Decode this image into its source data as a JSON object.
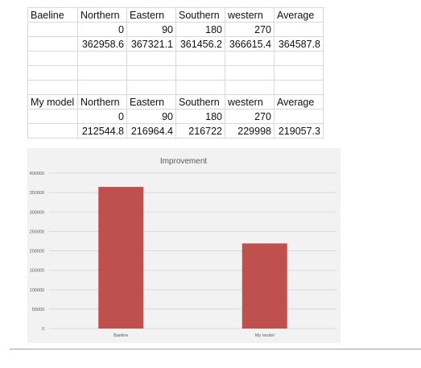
{
  "tables": [
    {
      "header": [
        "Baeline",
        "Northern",
        "Eastern",
        "Southern",
        "western",
        "Average"
      ],
      "rows": [
        [
          "",
          "0",
          "90",
          "180",
          "270",
          ""
        ],
        [
          "",
          "362958.6",
          "367321.1",
          "361456.2",
          "366615.4",
          "364587.8"
        ],
        [
          "",
          "",
          "",
          "",
          "",
          ""
        ],
        [
          "",
          "",
          "",
          "",
          "",
          ""
        ],
        [
          "",
          "",
          "",
          "",
          "",
          ""
        ]
      ]
    },
    {
      "header": [
        "My model",
        "Northern",
        "Eastern",
        "Southern",
        "western",
        "Average"
      ],
      "rows": [
        [
          "",
          "0",
          "90",
          "180",
          "270",
          ""
        ],
        [
          "",
          "212544.8",
          "216964.4",
          "216722",
          "229998",
          "219057.3"
        ]
      ]
    }
  ],
  "chart_data": {
    "type": "bar",
    "title": "Improvement",
    "categories": [
      "Baeline",
      "My model"
    ],
    "values": [
      364587.8,
      219057.3
    ],
    "ylim": [
      0,
      400000
    ],
    "yticks": [
      0,
      50000,
      100000,
      150000,
      200000,
      250000,
      300000,
      350000,
      400000
    ],
    "grid": true,
    "bar_color": "#c0504d"
  }
}
